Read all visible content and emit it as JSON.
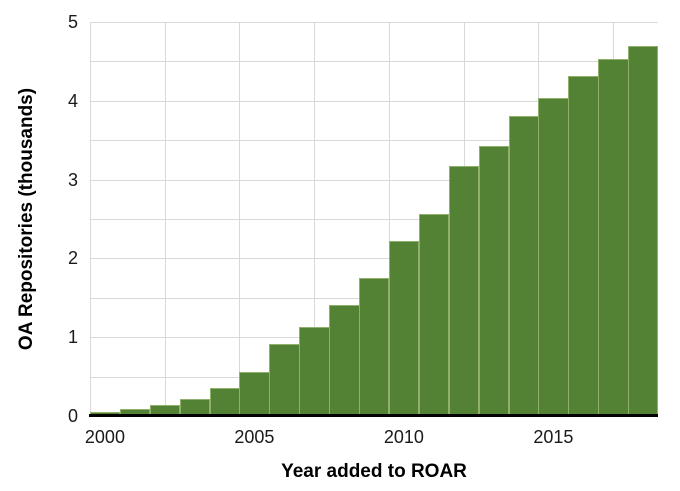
{
  "page": {
    "background_color": "#ffffff"
  },
  "chart_data": {
    "type": "bar",
    "title": "",
    "xlabel": "Year added to ROAR",
    "ylabel": "OA Repositories (thousands)",
    "categories": [
      "2000",
      "2001",
      "2002",
      "2003",
      "2004",
      "2005",
      "2006",
      "2007",
      "2008",
      "2009",
      "2010",
      "2011",
      "2012",
      "2013",
      "2014",
      "2015",
      "2016",
      "2017",
      "2018"
    ],
    "values": [
      0.05,
      0.09,
      0.14,
      0.21,
      0.35,
      0.56,
      0.91,
      1.13,
      1.41,
      1.75,
      2.22,
      2.56,
      3.17,
      3.43,
      3.81,
      4.04,
      4.31,
      4.53,
      4.7
    ],
    "ylim": [
      0,
      5
    ],
    "y_tick_interval": 1,
    "y_tick_labels": [
      "0",
      "1",
      "2",
      "3",
      "4",
      "5"
    ],
    "y_gridline_interval": 0.5,
    "x_tick_labels": [
      "2000",
      "2005",
      "2010",
      "2015"
    ],
    "x_tick_category_indexes": [
      0,
      5,
      10,
      15
    ],
    "x_gridline_every_categories": 2.5,
    "bar_gap": 0,
    "grid": true,
    "legend_position": "none",
    "bar_color": "#548235",
    "bar_edge_color": "#8fb16b",
    "gridline_color": "#d9d9d9",
    "axis_line_color": "#000000",
    "tick_label_color": "#1a1a1a"
  }
}
